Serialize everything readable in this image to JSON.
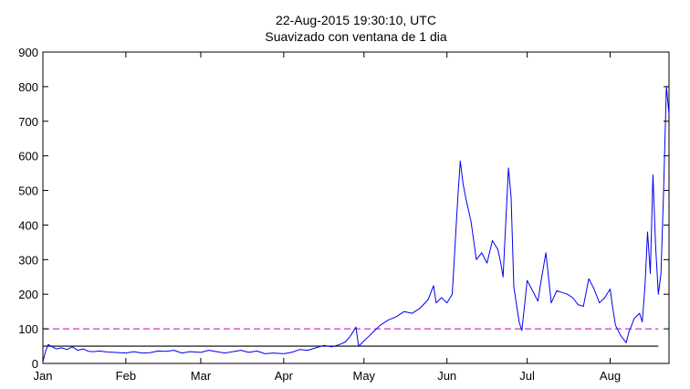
{
  "chart_data": {
    "type": "line",
    "title": "22-Aug-2015 19:30:10, UTC",
    "subtitle": "Suavizado con ventana de 1 dia",
    "xlabel": "",
    "ylabel": "",
    "x_axis": {
      "type": "date",
      "range": [
        "2015-01-01",
        "2015-08-23"
      ],
      "ticks": [
        {
          "date": "2015-01-01",
          "label": "Jan"
        },
        {
          "date": "2015-02-01",
          "label": "Feb"
        },
        {
          "date": "2015-03-01",
          "label": "Mar"
        },
        {
          "date": "2015-04-01",
          "label": "Apr"
        },
        {
          "date": "2015-05-01",
          "label": "May"
        },
        {
          "date": "2015-06-01",
          "label": "Jun"
        },
        {
          "date": "2015-07-01",
          "label": "Jul"
        },
        {
          "date": "2015-08-01",
          "label": "Aug"
        }
      ]
    },
    "ylim": [
      0,
      900
    ],
    "yticks": [
      0,
      100,
      200,
      300,
      400,
      500,
      600,
      700,
      800,
      900
    ],
    "grid": false,
    "legend": "none",
    "reference_lines": [
      {
        "y": 100,
        "color": "#cc33cc",
        "style": "dashed"
      },
      {
        "y": 50,
        "color": "#000000",
        "style": "solid"
      }
    ],
    "series": [
      {
        "color": "#0000ee",
        "points": [
          [
            "2015-01-01",
            5
          ],
          [
            "2015-01-02",
            35
          ],
          [
            "2015-01-03",
            55
          ],
          [
            "2015-01-04",
            50
          ],
          [
            "2015-01-06",
            42
          ],
          [
            "2015-01-08",
            45
          ],
          [
            "2015-01-10",
            40
          ],
          [
            "2015-01-12",
            48
          ],
          [
            "2015-01-14",
            38
          ],
          [
            "2015-01-16",
            42
          ],
          [
            "2015-01-18",
            35
          ],
          [
            "2015-01-20",
            34
          ],
          [
            "2015-01-22",
            36
          ],
          [
            "2015-01-25",
            33
          ],
          [
            "2015-01-28",
            32
          ],
          [
            "2015-02-01",
            30
          ],
          [
            "2015-02-04",
            34
          ],
          [
            "2015-02-07",
            30
          ],
          [
            "2015-02-10",
            31
          ],
          [
            "2015-02-13",
            36
          ],
          [
            "2015-02-16",
            35
          ],
          [
            "2015-02-19",
            38
          ],
          [
            "2015-02-22",
            30
          ],
          [
            "2015-02-25",
            34
          ],
          [
            "2015-03-01",
            32
          ],
          [
            "2015-03-04",
            38
          ],
          [
            "2015-03-07",
            34
          ],
          [
            "2015-03-10",
            30
          ],
          [
            "2015-03-13",
            34
          ],
          [
            "2015-03-16",
            38
          ],
          [
            "2015-03-19",
            32
          ],
          [
            "2015-03-22",
            36
          ],
          [
            "2015-03-25",
            28
          ],
          [
            "2015-03-28",
            30
          ],
          [
            "2015-04-01",
            28
          ],
          [
            "2015-04-04",
            32
          ],
          [
            "2015-04-07",
            40
          ],
          [
            "2015-04-10",
            38
          ],
          [
            "2015-04-13",
            45
          ],
          [
            "2015-04-16",
            52
          ],
          [
            "2015-04-19",
            48
          ],
          [
            "2015-04-22",
            55
          ],
          [
            "2015-04-24",
            62
          ],
          [
            "2015-04-26",
            80
          ],
          [
            "2015-04-28",
            105
          ],
          [
            "2015-04-29",
            50
          ],
          [
            "2015-05-01",
            65
          ],
          [
            "2015-05-03",
            80
          ],
          [
            "2015-05-05",
            95
          ],
          [
            "2015-05-07",
            110
          ],
          [
            "2015-05-10",
            125
          ],
          [
            "2015-05-13",
            135
          ],
          [
            "2015-05-16",
            150
          ],
          [
            "2015-05-19",
            145
          ],
          [
            "2015-05-22",
            160
          ],
          [
            "2015-05-25",
            185
          ],
          [
            "2015-05-27",
            225
          ],
          [
            "2015-05-28",
            175
          ],
          [
            "2015-05-30",
            190
          ],
          [
            "2015-06-01",
            175
          ],
          [
            "2015-06-03",
            200
          ],
          [
            "2015-06-05",
            470
          ],
          [
            "2015-06-06",
            585
          ],
          [
            "2015-06-07",
            520
          ],
          [
            "2015-06-08",
            480
          ],
          [
            "2015-06-10",
            410
          ],
          [
            "2015-06-12",
            300
          ],
          [
            "2015-06-14",
            320
          ],
          [
            "2015-06-16",
            290
          ],
          [
            "2015-06-18",
            355
          ],
          [
            "2015-06-20",
            330
          ],
          [
            "2015-06-21",
            295
          ],
          [
            "2015-06-22",
            250
          ],
          [
            "2015-06-23",
            410
          ],
          [
            "2015-06-24",
            565
          ],
          [
            "2015-06-25",
            480
          ],
          [
            "2015-06-26",
            220
          ],
          [
            "2015-06-28",
            120
          ],
          [
            "2015-06-29",
            95
          ],
          [
            "2015-07-01",
            240
          ],
          [
            "2015-07-03",
            210
          ],
          [
            "2015-07-05",
            180
          ],
          [
            "2015-07-06",
            230
          ],
          [
            "2015-07-08",
            320
          ],
          [
            "2015-07-10",
            175
          ],
          [
            "2015-07-12",
            210
          ],
          [
            "2015-07-14",
            205
          ],
          [
            "2015-07-16",
            200
          ],
          [
            "2015-07-18",
            190
          ],
          [
            "2015-07-20",
            170
          ],
          [
            "2015-07-22",
            165
          ],
          [
            "2015-07-24",
            245
          ],
          [
            "2015-07-26",
            215
          ],
          [
            "2015-07-28",
            175
          ],
          [
            "2015-07-30",
            190
          ],
          [
            "2015-08-01",
            215
          ],
          [
            "2015-08-02",
            160
          ],
          [
            "2015-08-03",
            110
          ],
          [
            "2015-08-05",
            80
          ],
          [
            "2015-08-07",
            60
          ],
          [
            "2015-08-08",
            90
          ],
          [
            "2015-08-10",
            130
          ],
          [
            "2015-08-12",
            145
          ],
          [
            "2015-08-13",
            120
          ],
          [
            "2015-08-14",
            220
          ],
          [
            "2015-08-15",
            380
          ],
          [
            "2015-08-16",
            260
          ],
          [
            "2015-08-17",
            545
          ],
          [
            "2015-08-18",
            340
          ],
          [
            "2015-08-19",
            200
          ],
          [
            "2015-08-20",
            260
          ],
          [
            "2015-08-21",
            500
          ],
          [
            "2015-08-22",
            800
          ],
          [
            "2015-08-23",
            720
          ]
        ]
      }
    ]
  }
}
